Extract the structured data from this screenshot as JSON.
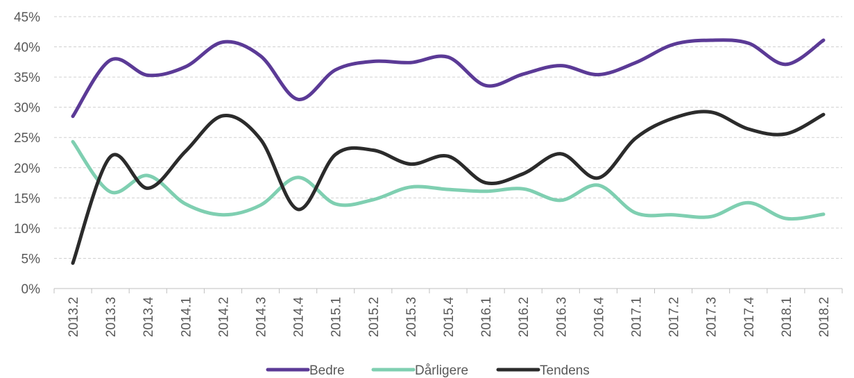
{
  "chart_data": {
    "type": "line",
    "categories": [
      "2013.2",
      "2013.3",
      "2013.4",
      "2014.1",
      "2014.2",
      "2014.3",
      "2014.4",
      "2015.1",
      "2015.2",
      "2015.3",
      "2015.4",
      "2016.1",
      "2016.2",
      "2016.3",
      "2016.4",
      "2017.1",
      "2017.2",
      "2017.3",
      "2017.4",
      "2018.1",
      "2018.2"
    ],
    "y_ticks": [
      "0%",
      "5%",
      "10%",
      "15%",
      "20%",
      "25%",
      "30%",
      "35%",
      "40%",
      "45%"
    ],
    "ylim": [
      0,
      45
    ],
    "grid": true,
    "legend_position": "bottom",
    "series": [
      {
        "name": "Bedre",
        "color": "#5b3a96",
        "values": [
          28.5,
          37.8,
          35.3,
          36.7,
          40.8,
          38.5,
          31.3,
          36.2,
          37.6,
          37.4,
          38.3,
          33.6,
          35.5,
          36.9,
          35.4,
          37.4,
          40.4,
          41.1,
          40.6,
          37.1,
          41.1
        ]
      },
      {
        "name": "Dårligere",
        "color": "#7fcfb1",
        "values": [
          24.3,
          16.0,
          18.7,
          14.0,
          12.2,
          13.8,
          18.4,
          14.0,
          14.7,
          16.8,
          16.4,
          16.1,
          16.5,
          14.6,
          17.1,
          12.5,
          12.2,
          11.9,
          14.2,
          11.6,
          12.3
        ]
      },
      {
        "name": "Tendens",
        "color": "#2b2b2b",
        "values": [
          4.2,
          21.8,
          16.6,
          22.7,
          28.6,
          24.7,
          13.1,
          22.2,
          22.9,
          20.6,
          21.9,
          17.5,
          19.0,
          22.3,
          18.3,
          24.9,
          28.2,
          29.2,
          26.4,
          25.6,
          28.8
        ]
      }
    ]
  }
}
